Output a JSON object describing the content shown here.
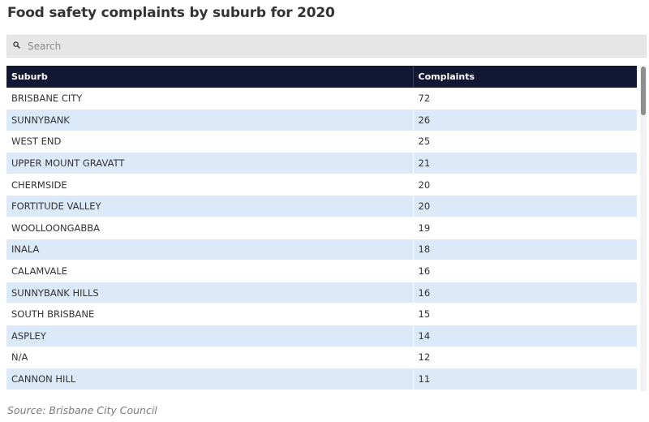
{
  "title": "Food safety complaints by suburb for 2020",
  "search": {
    "placeholder": "Search",
    "icon": "search-icon"
  },
  "table": {
    "columns": [
      "Suburb",
      "Complaints"
    ],
    "rows": [
      [
        "BRISBANE CITY",
        "72"
      ],
      [
        "SUNNYBANK",
        "26"
      ],
      [
        "WEST END",
        "25"
      ],
      [
        "UPPER MOUNT GRAVATT",
        "21"
      ],
      [
        "CHERMSIDE",
        "20"
      ],
      [
        "FORTITUDE VALLEY",
        "20"
      ],
      [
        "WOOLLOONGABBA",
        "19"
      ],
      [
        "INALA",
        "18"
      ],
      [
        "CALAMVALE",
        "16"
      ],
      [
        "SUNNYBANK HILLS",
        "16"
      ],
      [
        "SOUTH BRISBANE",
        "15"
      ],
      [
        "ASPLEY",
        "14"
      ],
      [
        "N/A",
        "12"
      ],
      [
        "CANNON HILL",
        "11"
      ]
    ]
  },
  "source": "Source: Brisbane City Council",
  "colors": {
    "header_bg": "#121834",
    "stripe_bg": "#dbe9f8",
    "search_bg": "#e6e6e6"
  }
}
